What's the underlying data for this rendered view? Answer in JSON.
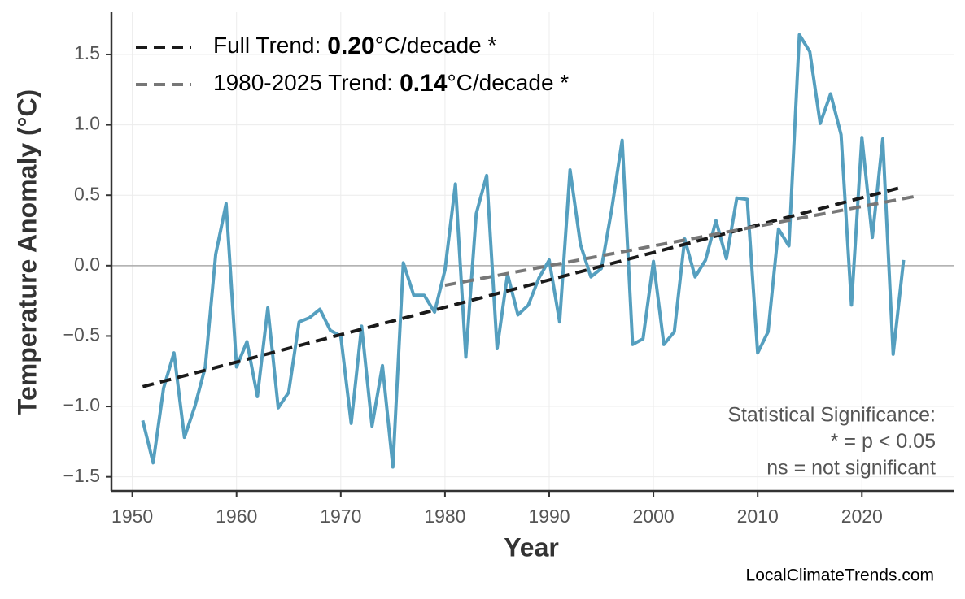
{
  "chart_data": {
    "type": "line",
    "x_label": "Year",
    "y_label": "Temperature Anomaly (°C)",
    "source": "LocalClimateTrends.com",
    "x": [
      1951,
      1952,
      1953,
      1954,
      1955,
      1956,
      1957,
      1958,
      1959,
      1960,
      1961,
      1962,
      1963,
      1964,
      1965,
      1966,
      1967,
      1968,
      1969,
      1970,
      1971,
      1972,
      1973,
      1974,
      1975,
      1976,
      1977,
      1978,
      1979,
      1980,
      1981,
      1982,
      1983,
      1984,
      1985,
      1986,
      1987,
      1988,
      1989,
      1990,
      1991,
      1992,
      1993,
      1994,
      1995,
      1996,
      1997,
      1998,
      1999,
      2000,
      2001,
      2002,
      2003,
      2004,
      2005,
      2006,
      2007,
      2008,
      2009,
      2010,
      2011,
      2012,
      2013,
      2014,
      2015,
      2016,
      2017,
      2018,
      2019,
      2020,
      2021,
      2022,
      2023,
      2024
    ],
    "series": [
      {
        "color": "#559fbf",
        "values": [
          -1.1,
          -1.4,
          -0.87,
          -0.62,
          -1.22,
          -1.0,
          -0.72,
          0.08,
          0.44,
          -0.72,
          -0.54,
          -0.93,
          -0.3,
          -1.01,
          -0.9,
          -0.4,
          -0.37,
          -0.31,
          -0.46,
          -0.5,
          -1.12,
          -0.43,
          -1.14,
          -0.71,
          -1.43,
          0.02,
          -0.21,
          -0.21,
          -0.33,
          -0.03,
          0.58,
          -0.65,
          0.37,
          0.64,
          -0.59,
          -0.06,
          -0.35,
          -0.28,
          -0.09,
          0.04,
          -0.4,
          0.68,
          0.15,
          -0.08,
          -0.02,
          0.4,
          0.89,
          -0.56,
          -0.52,
          0.03,
          -0.56,
          -0.47,
          0.19,
          -0.08,
          0.04,
          0.32,
          0.05,
          0.48,
          0.47,
          -0.62,
          -0.47,
          0.26,
          0.14,
          1.64,
          1.52,
          1.01,
          1.22,
          0.93,
          -0.28,
          0.91,
          0.2,
          0.9,
          -0.63,
          0.04
        ]
      }
    ],
    "trends": [
      {
        "label": "Full Trend:",
        "rate": "0.20",
        "unit": "°C/decade *",
        "color": "#1a1a1a",
        "x": [
          1951,
          2024
        ],
        "values": [
          -0.86,
          0.56
        ]
      },
      {
        "label": "1980-2025 Trend:",
        "rate": "0.14",
        "unit": "°C/decade *",
        "color": "#777777",
        "x": [
          1980,
          2025
        ],
        "values": [
          -0.14,
          0.49
        ]
      }
    ],
    "annotation": [
      "Statistical Significance:",
      "* = p < 0.05",
      "ns = not significant"
    ],
    "hline": 0,
    "xlim": [
      1948,
      2028.8
    ],
    "ylim": [
      -1.6,
      1.8
    ],
    "xticks": [
      1950,
      1960,
      1970,
      1980,
      1990,
      2000,
      2010,
      2020
    ],
    "yticks": [
      {
        "value": -1.5,
        "label": "−1.5"
      },
      {
        "value": -1.0,
        "label": "−1.0"
      },
      {
        "value": -0.5,
        "label": "−0.5"
      },
      {
        "value": 0,
        "label": "0.0"
      },
      0.5,
      {
        "value": 1.0,
        "label": "1.0"
      },
      1.5
    ],
    "grid": true
  }
}
